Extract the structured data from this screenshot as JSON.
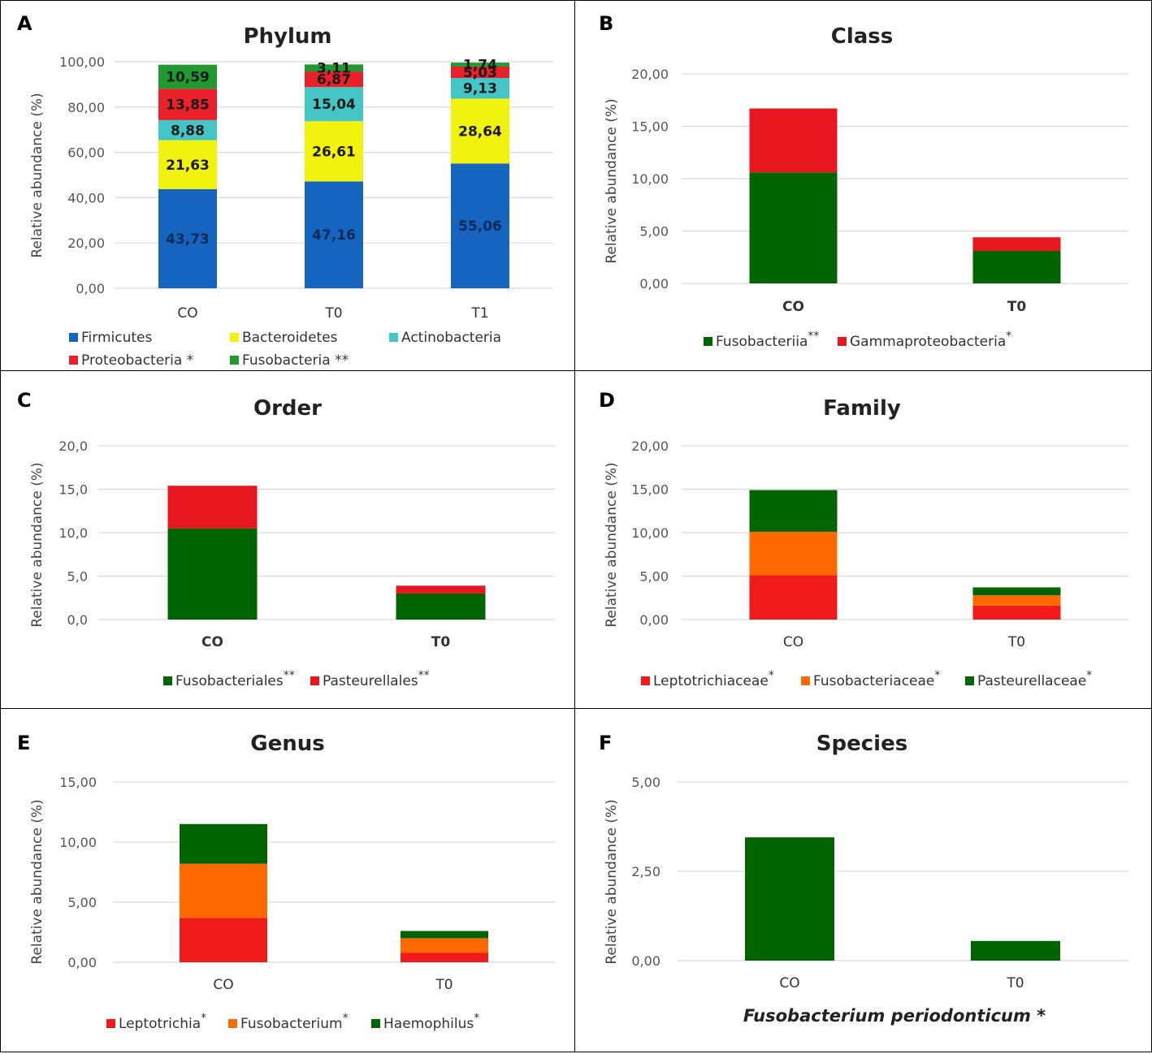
{
  "figure": {
    "panels": [
      {
        "letter": "A",
        "chart_key": 0
      },
      {
        "letter": "B",
        "chart_key": 1
      },
      {
        "letter": "C",
        "chart_key": 2
      },
      {
        "letter": "D",
        "chart_key": 3
      },
      {
        "letter": "E",
        "chart_key": 4
      },
      {
        "letter": "F",
        "chart_key": 5
      }
    ]
  },
  "chart_data": [
    {
      "type": "bar",
      "stacked": true,
      "title": "Phylum",
      "ylabel": "Relative abundance (%)",
      "xlabel": "",
      "ylim": [
        0,
        100
      ],
      "yticks": [
        "0,00",
        "20,00",
        "40,00",
        "60,00",
        "80,00",
        "100,00"
      ],
      "categories": [
        "CO",
        "T0",
        "T1"
      ],
      "data_labels": true,
      "series": [
        {
          "name": "Firmicutes",
          "color": "#1565C0",
          "values": [
            43.73,
            47.16,
            55.06
          ],
          "labels": [
            "43,73",
            "47,16",
            "55,06"
          ],
          "legend_label": "Firmicutes"
        },
        {
          "name": "Bacteroidetes",
          "color": "#F2F20F",
          "values": [
            21.63,
            26.61,
            28.64
          ],
          "labels": [
            "21,63",
            "26,61",
            "28,64"
          ],
          "legend_label": "Bacteroidetes"
        },
        {
          "name": "Actinobacteria",
          "color": "#45C6C6",
          "values": [
            8.88,
            15.04,
            9.13
          ],
          "labels": [
            "8,88",
            "15,04",
            "9,13"
          ],
          "legend_label": "Actinobacteria"
        },
        {
          "name": "Proteobacteria",
          "color": "#E8212B",
          "values": [
            13.85,
            6.87,
            5.03
          ],
          "labels": [
            "13,85",
            "6,87",
            "5,03"
          ],
          "legend_label": "Proteobacteria *"
        },
        {
          "name": "Fusobacteria",
          "color": "#1E9A2E",
          "values": [
            10.59,
            3.11,
            1.74
          ],
          "labels": [
            "10,59",
            "3,11",
            "1,74"
          ],
          "legend_label": "Fusobacteria **"
        }
      ],
      "legend": "bottom"
    },
    {
      "type": "bar",
      "stacked": true,
      "title": "Class",
      "ylabel": "Relative abundance (%)",
      "ylim": [
        0,
        20
      ],
      "yticks": [
        "0,00",
        "5,00",
        "10,00",
        "15,00",
        "20,00"
      ],
      "categories": [
        "CO",
        "T0"
      ],
      "bold_categories": true,
      "series": [
        {
          "name": "Fusobacteriia",
          "color": "#006400",
          "values": [
            10.6,
            3.1
          ],
          "legend_label": "Fusobacteriia",
          "sup": "**"
        },
        {
          "name": "Gammaproteobacteria",
          "color": "#E8161E",
          "values": [
            6.1,
            1.3
          ],
          "legend_label": "Gammaproteobacteria",
          "sup": "*"
        }
      ],
      "legend": "bottom"
    },
    {
      "type": "bar",
      "stacked": true,
      "title": "Order",
      "ylabel": "Relative abundance (%)",
      "ylim": [
        0,
        20
      ],
      "yticks": [
        "0,0",
        "5,0",
        "10,0",
        "15,0",
        "20,0"
      ],
      "categories": [
        "CO",
        "T0"
      ],
      "bold_categories": true,
      "series": [
        {
          "name": "Fusobacteriales",
          "color": "#006400",
          "values": [
            10.5,
            3.0
          ],
          "legend_label": "Fusobacteriales",
          "sup": "**"
        },
        {
          "name": "Pasteurellales",
          "color": "#E8161E",
          "values": [
            4.9,
            0.9
          ],
          "legend_label": "Pasteurellales",
          "sup": "**"
        }
      ],
      "legend": "bottom"
    },
    {
      "type": "bar",
      "stacked": true,
      "title": "Family",
      "ylabel": "Relative abundance (%)",
      "ylim": [
        0,
        20
      ],
      "yticks": [
        "0,00",
        "5,00",
        "10,00",
        "15,00",
        "20,00"
      ],
      "categories": [
        "CO",
        "T0"
      ],
      "series": [
        {
          "name": "Leptotrichiaceae",
          "color": "#F01A1A",
          "values": [
            5.1,
            1.6
          ],
          "legend_label": "Leptotrichiaceae",
          "sup": "*"
        },
        {
          "name": "Fusobacteriaceae",
          "color": "#FF6A00",
          "values": [
            5.0,
            1.2
          ],
          "legend_label": "Fusobacteriaceae",
          "sup": "*"
        },
        {
          "name": "Pasteurellaceae",
          "color": "#006400",
          "values": [
            4.8,
            0.9
          ],
          "legend_label": "Pasteurellaceae",
          "sup": "*"
        }
      ],
      "legend": "bottom"
    },
    {
      "type": "bar",
      "stacked": true,
      "title": "Genus",
      "ylabel": "Relative abundance (%)",
      "ylim": [
        0,
        15
      ],
      "yticks": [
        "0,00",
        "5,00",
        "10,00",
        "15,00"
      ],
      "categories": [
        "CO",
        "T0"
      ],
      "series": [
        {
          "name": "Leptotrichia",
          "color": "#F01A1A",
          "values": [
            3.7,
            0.8
          ],
          "legend_label": "Leptotrichia",
          "sup": "*"
        },
        {
          "name": "Fusobacterium",
          "color": "#FF6A00",
          "values": [
            4.5,
            1.2
          ],
          "legend_label": "Fusobacterium",
          "sup": "*"
        },
        {
          "name": "Haemophilus",
          "color": "#006400",
          "values": [
            3.3,
            0.6
          ],
          "legend_label": "Haemophilus",
          "sup": "*"
        }
      ],
      "legend": "bottom"
    },
    {
      "type": "bar",
      "stacked": false,
      "title": "Species",
      "ylabel": "Relative abundance (%)",
      "ylim": [
        0,
        5
      ],
      "yticks": [
        "0,00",
        "2,50",
        "5,00"
      ],
      "categories": [
        "CO",
        "T0"
      ],
      "series": [
        {
          "name": "Fusobacterium periodonticum",
          "color": "#006400",
          "values": [
            3.45,
            0.55
          ]
        }
      ],
      "caption": "Fusobacterium periodonticum *",
      "legend": "none"
    }
  ]
}
